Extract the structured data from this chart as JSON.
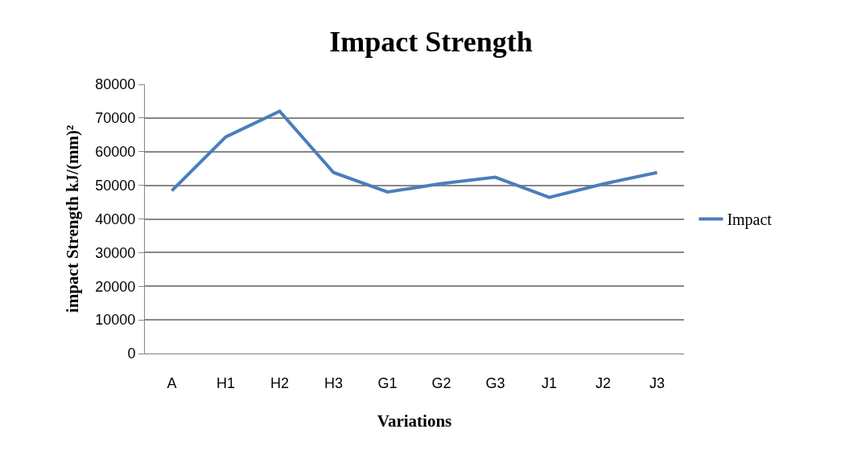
{
  "chart_data": {
    "type": "line",
    "title": "Impact Strength",
    "xlabel": "Variations",
    "ylabel": "impact Strength kJ/(mm)²",
    "categories": [
      "A",
      "H1",
      "H2",
      "H3",
      "G1",
      "G2",
      "G3",
      "J1",
      "J2",
      "J3"
    ],
    "series": [
      {
        "name": "Impact",
        "color": "#4a7ebb",
        "values": [
          48400,
          64400,
          72000,
          53800,
          48000,
          50500,
          52400,
          46400,
          50400,
          53800
        ]
      }
    ],
    "ylim": [
      0,
      80000
    ],
    "yticks": [
      0,
      10000,
      20000,
      30000,
      40000,
      50000,
      60000,
      70000,
      80000
    ],
    "grid": "y",
    "legend": "right",
    "marker": "none",
    "line_style": "solid"
  }
}
